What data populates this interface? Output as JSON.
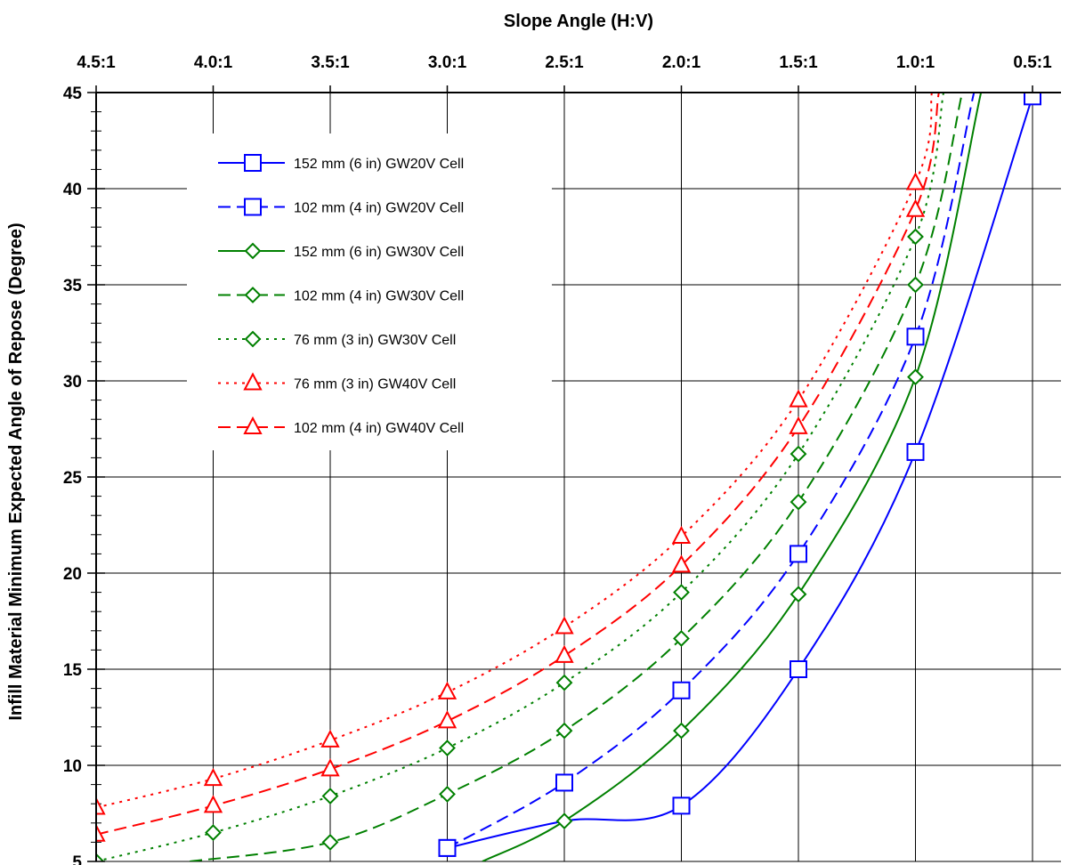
{
  "chart_data": {
    "type": "line",
    "title": "",
    "xlabel": "Slope Angle (H:V)",
    "ylabel": "Infill Material Minimum Expected Angle of Repose (Degree)",
    "x_axis_position": "top",
    "x_ticks": [
      {
        "value": 4.5,
        "label": "4.5:1"
      },
      {
        "value": 4.0,
        "label": "4.0:1"
      },
      {
        "value": 3.5,
        "label": "3.5:1"
      },
      {
        "value": 3.0,
        "label": "3.0:1"
      },
      {
        "value": 2.5,
        "label": "2.5:1"
      },
      {
        "value": 2.0,
        "label": "2.0:1"
      },
      {
        "value": 1.5,
        "label": "1.5:1"
      },
      {
        "value": 1.0,
        "label": "1.0:1"
      },
      {
        "value": 0.5,
        "label": "0.5:1"
      }
    ],
    "xlim": [
      4.5,
      0.5
    ],
    "x_reversed": true,
    "ylim": [
      5,
      45
    ],
    "y_ticks": [
      5,
      10,
      15,
      20,
      25,
      30,
      35,
      40,
      45
    ],
    "grid": true,
    "legend_position": "upper-left",
    "series": [
      {
        "name": "152 mm (6 in) GW20V Cell",
        "color": "#0000ff",
        "dash": "solid",
        "marker": "square",
        "points": [
          {
            "x": 3.0,
            "y": 5.7
          },
          {
            "x": 2.5,
            "y": 7.1
          },
          {
            "x": 2.0,
            "y": 7.9
          },
          {
            "x": 1.5,
            "y": 15.0
          },
          {
            "x": 1.0,
            "y": 26.3
          },
          {
            "x": 0.5,
            "y": 44.8
          }
        ],
        "markers": [
          {
            "x": 3.0,
            "y": 5.7
          },
          {
            "x": 2.0,
            "y": 7.9
          },
          {
            "x": 1.5,
            "y": 15.0
          },
          {
            "x": 1.0,
            "y": 26.3
          },
          {
            "x": 0.5,
            "y": 44.8
          }
        ]
      },
      {
        "name": "102 mm (4 in) GW20V Cell",
        "color": "#0000ff",
        "dash": "dashed",
        "marker": "square",
        "points": [
          {
            "x": 3.0,
            "y": 5.7
          },
          {
            "x": 2.5,
            "y": 9.1
          },
          {
            "x": 2.0,
            "y": 13.9
          },
          {
            "x": 1.5,
            "y": 21.0
          },
          {
            "x": 1.0,
            "y": 32.3
          },
          {
            "x": 0.75,
            "y": 45.0
          }
        ],
        "markers": [
          {
            "x": 3.0,
            "y": 5.7
          },
          {
            "x": 2.5,
            "y": 9.1
          },
          {
            "x": 2.0,
            "y": 13.9
          },
          {
            "x": 1.5,
            "y": 21.0
          },
          {
            "x": 1.0,
            "y": 32.3
          }
        ]
      },
      {
        "name": "152 mm (6 in) GW30V Cell",
        "color": "#008000",
        "dash": "solid",
        "marker": "diamond",
        "points": [
          {
            "x": 2.85,
            "y": 5.0
          },
          {
            "x": 2.5,
            "y": 7.1
          },
          {
            "x": 2.0,
            "y": 11.8
          },
          {
            "x": 1.5,
            "y": 18.9
          },
          {
            "x": 1.0,
            "y": 30.2
          },
          {
            "x": 0.72,
            "y": 45.0
          }
        ],
        "markers": [
          {
            "x": 2.5,
            "y": 7.1
          },
          {
            "x": 2.0,
            "y": 11.8
          },
          {
            "x": 1.5,
            "y": 18.9
          },
          {
            "x": 1.0,
            "y": 30.2
          }
        ]
      },
      {
        "name": "102 mm (4 in) GW30V Cell",
        "color": "#008000",
        "dash": "dashed",
        "marker": "diamond",
        "points": [
          {
            "x": 4.1,
            "y": 5.0
          },
          {
            "x": 3.5,
            "y": 6.0
          },
          {
            "x": 3.0,
            "y": 8.5
          },
          {
            "x": 2.5,
            "y": 11.8
          },
          {
            "x": 2.0,
            "y": 16.6
          },
          {
            "x": 1.5,
            "y": 23.7
          },
          {
            "x": 1.0,
            "y": 35.0
          },
          {
            "x": 0.8,
            "y": 45.0
          }
        ],
        "markers": [
          {
            "x": 3.5,
            "y": 6.0
          },
          {
            "x": 3.0,
            "y": 8.5
          },
          {
            "x": 2.5,
            "y": 11.8
          },
          {
            "x": 2.0,
            "y": 16.6
          },
          {
            "x": 1.5,
            "y": 23.7
          },
          {
            "x": 1.0,
            "y": 35.0
          }
        ]
      },
      {
        "name": "76 mm (3 in) GW30V Cell",
        "color": "#008000",
        "dash": "dotted",
        "marker": "diamond",
        "points": [
          {
            "x": 4.5,
            "y": 5.0
          },
          {
            "x": 4.0,
            "y": 6.5
          },
          {
            "x": 3.5,
            "y": 8.4
          },
          {
            "x": 3.0,
            "y": 10.9
          },
          {
            "x": 2.5,
            "y": 14.3
          },
          {
            "x": 2.0,
            "y": 19.0
          },
          {
            "x": 1.5,
            "y": 26.2
          },
          {
            "x": 1.0,
            "y": 37.5
          },
          {
            "x": 0.88,
            "y": 45.0
          }
        ],
        "markers": [
          {
            "x": 4.5,
            "y": 5.0
          },
          {
            "x": 4.0,
            "y": 6.5
          },
          {
            "x": 3.5,
            "y": 8.4
          },
          {
            "x": 3.0,
            "y": 10.9
          },
          {
            "x": 2.5,
            "y": 14.3
          },
          {
            "x": 2.0,
            "y": 19.0
          },
          {
            "x": 1.5,
            "y": 26.2
          },
          {
            "x": 1.0,
            "y": 37.5
          }
        ]
      },
      {
        "name": "76 mm (3 in) GW40V Cell",
        "color": "#ff0000",
        "dash": "dotted",
        "marker": "triangle",
        "points": [
          {
            "x": 4.5,
            "y": 7.8
          },
          {
            "x": 4.0,
            "y": 9.3
          },
          {
            "x": 3.5,
            "y": 11.3
          },
          {
            "x": 3.0,
            "y": 13.8
          },
          {
            "x": 2.5,
            "y": 17.2
          },
          {
            "x": 2.0,
            "y": 21.9
          },
          {
            "x": 1.5,
            "y": 29.0
          },
          {
            "x": 1.0,
            "y": 40.3
          },
          {
            "x": 0.93,
            "y": 45.0
          }
        ],
        "markers": [
          {
            "x": 4.5,
            "y": 7.8
          },
          {
            "x": 4.0,
            "y": 9.3
          },
          {
            "x": 3.5,
            "y": 11.3
          },
          {
            "x": 3.0,
            "y": 13.8
          },
          {
            "x": 2.5,
            "y": 17.2
          },
          {
            "x": 2.0,
            "y": 21.9
          },
          {
            "x": 1.5,
            "y": 29.0
          },
          {
            "x": 1.0,
            "y": 40.3
          }
        ]
      },
      {
        "name": "102 mm (4 in) GW40V Cell",
        "color": "#ff0000",
        "dash": "dashed",
        "marker": "triangle",
        "points": [
          {
            "x": 4.5,
            "y": 6.4
          },
          {
            "x": 4.0,
            "y": 7.9
          },
          {
            "x": 3.5,
            "y": 9.8
          },
          {
            "x": 3.0,
            "y": 12.3
          },
          {
            "x": 2.5,
            "y": 15.7
          },
          {
            "x": 2.0,
            "y": 20.4
          },
          {
            "x": 1.5,
            "y": 27.6
          },
          {
            "x": 1.0,
            "y": 38.9
          },
          {
            "x": 0.9,
            "y": 45.0
          }
        ],
        "markers": [
          {
            "x": 4.5,
            "y": 6.4
          },
          {
            "x": 4.0,
            "y": 7.9
          },
          {
            "x": 3.5,
            "y": 9.8
          },
          {
            "x": 3.0,
            "y": 12.3
          },
          {
            "x": 2.5,
            "y": 15.7
          },
          {
            "x": 2.0,
            "y": 20.4
          },
          {
            "x": 1.5,
            "y": 27.6
          },
          {
            "x": 1.0,
            "y": 38.9
          }
        ]
      }
    ]
  }
}
